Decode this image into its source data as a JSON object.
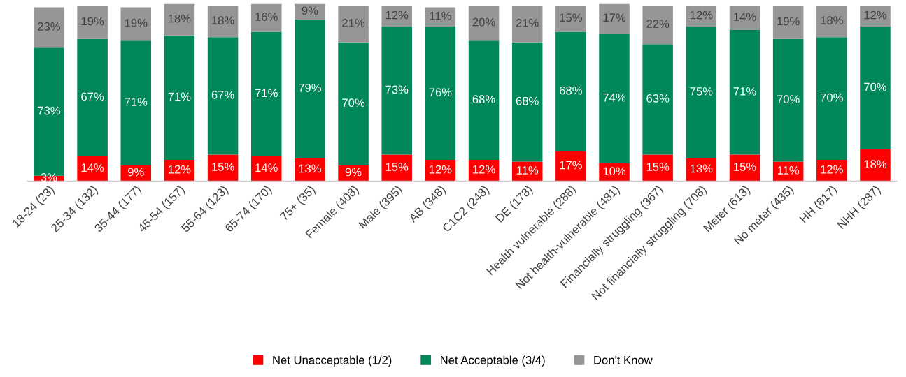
{
  "chart_data": {
    "type": "bar",
    "stacked": true,
    "legend": "bottom",
    "tick_labels": "x",
    "grid": false,
    "categories": [
      "18-24 (23)",
      "25-34 (132)",
      "35-44 (177)",
      "45-54 (157)",
      "55-64 (123)",
      "65-74 (170)",
      "75+ (35)",
      "Female (408)",
      "Male (395)",
      "AB (348)",
      "C1C2 (248)",
      "DE (178)",
      "Health vulnerable (288)",
      "Not health-vulnerable (481)",
      "Financially struggling (367)",
      "Not financially struggling (708)",
      "Meter (613)",
      "No meter (435)",
      "HH (817)",
      "NHH (287)"
    ],
    "series": [
      {
        "name": "Net Unacceptable (1/2)",
        "color": "#ff0000",
        "values": [
          3,
          14,
          9,
          12,
          15,
          14,
          13,
          9,
          15,
          12,
          12,
          11,
          17,
          10,
          15,
          13,
          15,
          11,
          12,
          18
        ],
        "value_labels": [
          "3%",
          "14%",
          "9%",
          "12%",
          "15%",
          "14%",
          "13%",
          "9%",
          "15%",
          "12%",
          "12%",
          "11%",
          "17%",
          "10%",
          "15%",
          "13%",
          "15%",
          "11%",
          "12%",
          "18%"
        ]
      },
      {
        "name": "Net Acceptable (3/4)",
        "color": "#00875a",
        "values": [
          73,
          67,
          71,
          71,
          67,
          71,
          79,
          70,
          73,
          76,
          68,
          68,
          68,
          74,
          63,
          75,
          71,
          70,
          70,
          70
        ],
        "value_labels": [
          "73%",
          "67%",
          "71%",
          "71%",
          "67%",
          "71%",
          "79%",
          "70%",
          "73%",
          "76%",
          "68%",
          "68%",
          "68%",
          "74%",
          "63%",
          "75%",
          "71%",
          "70%",
          "70%",
          "70%"
        ]
      },
      {
        "name": "Don't Know",
        "color": "#969696",
        "values": [
          23,
          19,
          19,
          18,
          18,
          16,
          9,
          21,
          12,
          11,
          20,
          21,
          15,
          17,
          22,
          12,
          14,
          19,
          18,
          12
        ],
        "value_labels": [
          "23%",
          "19%",
          "19%",
          "18%",
          "18%",
          "16%",
          "9%",
          "21%",
          "12%",
          "11%",
          "20%",
          "21%",
          "15%",
          "17%",
          "22%",
          "12%",
          "14%",
          "19%",
          "18%",
          "12%"
        ]
      }
    ]
  }
}
